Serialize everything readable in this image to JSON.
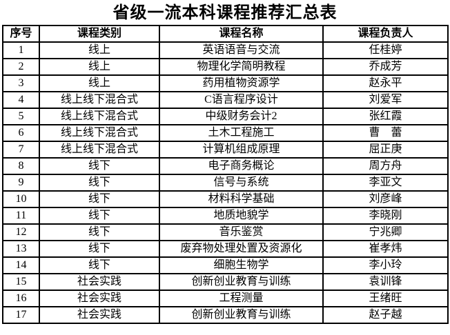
{
  "title": "省级一流本科课程推荐汇总表",
  "table": {
    "headers": [
      "序号",
      "课程类别",
      "课程名称",
      "课程负责人"
    ],
    "rows": [
      [
        "1",
        "线上",
        "英语语音与交流",
        "任桂婷"
      ],
      [
        "2",
        "线上",
        "物理化学简明教程",
        "乔成芳"
      ],
      [
        "3",
        "线上",
        "药用植物资源学",
        "赵永平"
      ],
      [
        "4",
        "线上线下混合式",
        "C语言程序设计",
        "刘爱军"
      ],
      [
        "5",
        "线上线下混合式",
        "中级财务会计2",
        "张红霞"
      ],
      [
        "6",
        "线上线下混合式",
        "土木工程施工",
        "曹　蕾"
      ],
      [
        "7",
        "线上线下混合式",
        "计算机组成原理",
        "屈正庚"
      ],
      [
        "8",
        "线下",
        "电子商务概论",
        "周方舟"
      ],
      [
        "9",
        "线下",
        "信号与系统",
        "李亚文"
      ],
      [
        "10",
        "线下",
        "材料科学基础",
        "刘彦峰"
      ],
      [
        "11",
        "线下",
        "地质地貌学",
        "李晓刚"
      ],
      [
        "12",
        "线下",
        "音乐鉴赏",
        "宁兆卿"
      ],
      [
        "13",
        "线下",
        "废弃物处理处置及资源化",
        "崔孝炜"
      ],
      [
        "14",
        "线下",
        "细胞生物学",
        "李小玲"
      ],
      [
        "15",
        "社会实践",
        "创新创业教育与训练",
        "袁训锋"
      ],
      [
        "16",
        "社会实践",
        "工程测量",
        "王绪旺"
      ],
      [
        "17",
        "社会实践",
        "创新创业教育与训练",
        "赵子越"
      ]
    ]
  },
  "colors": {
    "text": "#000000",
    "border": "#000000",
    "background": "#ffffff"
  }
}
